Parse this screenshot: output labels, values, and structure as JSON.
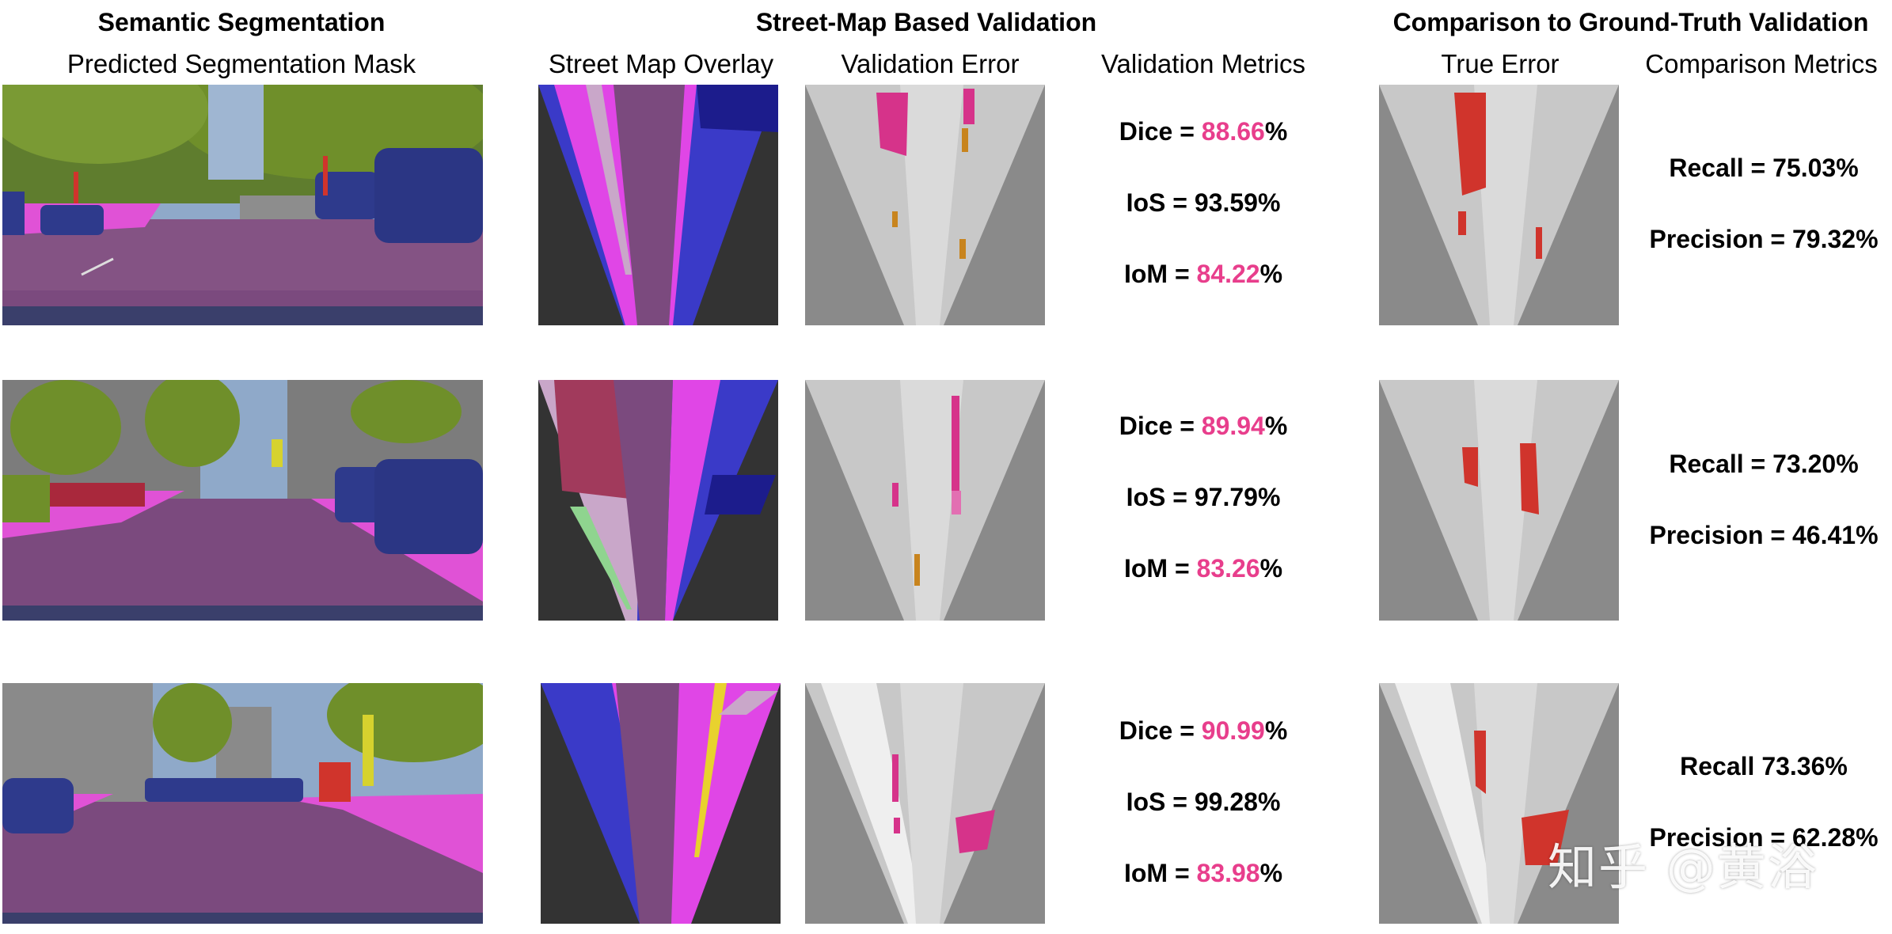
{
  "headers": {
    "semantic": "Semantic Segmentation",
    "streetmap": "Street-Map Based Validation",
    "comparison": "Comparison to Ground-Truth Validation"
  },
  "columns": {
    "mask": "Predicted Segmentation Mask",
    "overlay": "Street Map Overlay",
    "val_error": "Validation Error",
    "val_metrics": "Validation Metrics",
    "true_error": "True Error",
    "cmp_metrics": "Comparison Metrics"
  },
  "rows": [
    {
      "dice_label": "Dice = ",
      "dice_value": "88.66",
      "dice_unit": "%",
      "ios": "IoS = 93.59%",
      "iom_label": "IoM = ",
      "iom_value": "84.22",
      "iom_unit": "%",
      "recall": "Recall = 75.03%",
      "precision": "Precision = 79.32%"
    },
    {
      "dice_label": "Dice = ",
      "dice_value": "89.94",
      "dice_unit": "%",
      "ios": "IoS = 97.79%",
      "iom_label": "IoM = ",
      "iom_value": "83.26",
      "iom_unit": "%",
      "recall": "Recall = 73.20%",
      "precision": "Precision = 46.41%"
    },
    {
      "dice_label": "Dice = ",
      "dice_value": "90.99",
      "dice_unit": "%",
      "ios": "IoS = 99.28%",
      "iom_label": "IoM = ",
      "iom_value": "83.98",
      "iom_unit": "%",
      "recall": "Recall 73.36%",
      "precision": "Precision = 62.28%"
    }
  ],
  "watermark": "知乎 @黄浴",
  "colors": {
    "highlight": "#e83e8c",
    "road": "#7b4a7e",
    "sidewalk": "#e052d6",
    "car": "#2e3a8c",
    "vegetation": "#6f8f2a",
    "error_red": "#d0342c",
    "error_magenta": "#d6338a",
    "error_orange": "#c8841e"
  }
}
